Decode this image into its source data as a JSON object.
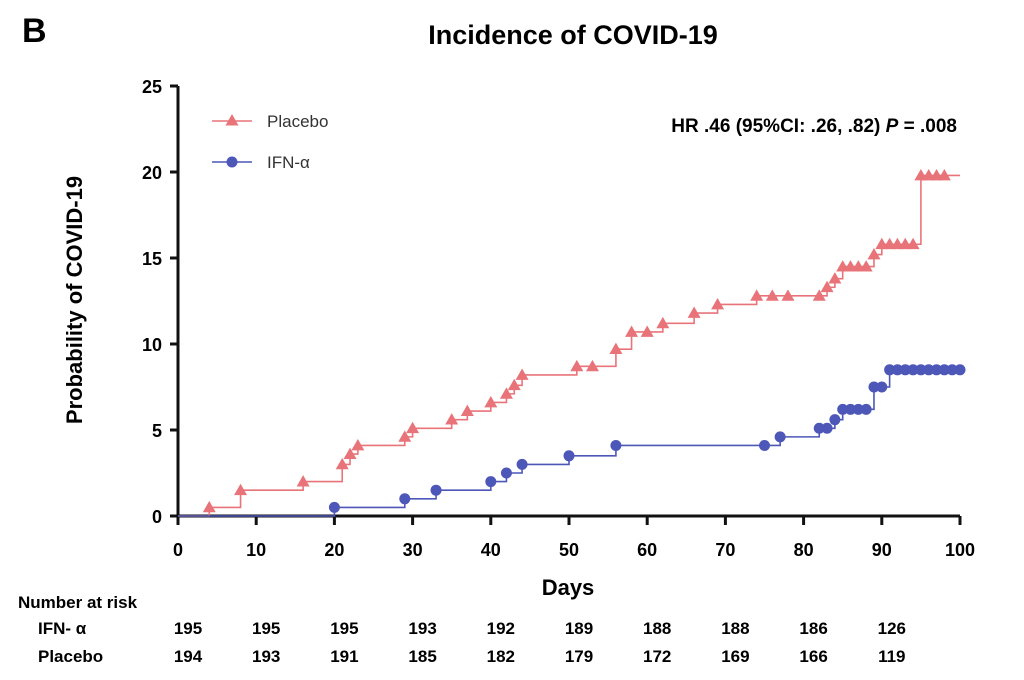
{
  "panel_label": "B",
  "colors": {
    "placebo": "#e8747a",
    "ifn": "#4d57b8",
    "axis": "#111111"
  },
  "legend": {
    "placebo_icon": "triangle-marker",
    "ifn_icon": "circle-marker"
  },
  "hr_annotation": {
    "prefix": "HR .46 (95%CI: .26, .82) ",
    "p_label": "P",
    "suffix": " = .008"
  },
  "risk_table": {
    "title": "Number at risk",
    "rows": [
      {
        "label": "IFN- α",
        "values": [
          "195",
          "195",
          "195",
          "193",
          "192",
          "189",
          "188",
          "188",
          "186",
          "126"
        ]
      },
      {
        "label": "Placebo",
        "values": [
          "194",
          "193",
          "191",
          "185",
          "182",
          "179",
          "172",
          "169",
          "166",
          "119"
        ]
      }
    ]
  },
  "chart_data": {
    "type": "line",
    "subtype": "kaplan-meier-step",
    "title": "Incidence of  COVID-19",
    "xlabel": "Days",
    "ylabel": "Probability of COVID-19",
    "xlim": [
      0,
      100
    ],
    "ylim": [
      0,
      25
    ],
    "xticks": [
      0,
      10,
      20,
      30,
      40,
      50,
      60,
      70,
      80,
      90,
      100
    ],
    "yticks": [
      0,
      5,
      10,
      15,
      20,
      25
    ],
    "grid": false,
    "legend_position": "top-left",
    "series": [
      {
        "name": "Placebo",
        "marker": "triangle",
        "points": [
          [
            4,
            0.5
          ],
          [
            8,
            1.5
          ],
          [
            16,
            2.0
          ],
          [
            21,
            3.0
          ],
          [
            22,
            3.6
          ],
          [
            23,
            4.1
          ],
          [
            29,
            4.6
          ],
          [
            30,
            5.1
          ],
          [
            35,
            5.6
          ],
          [
            37,
            6.1
          ],
          [
            40,
            6.6
          ],
          [
            42,
            7.1
          ],
          [
            43,
            7.6
          ],
          [
            44,
            8.2
          ],
          [
            51,
            8.7
          ],
          [
            53,
            8.7
          ],
          [
            56,
            9.7
          ],
          [
            58,
            10.7
          ],
          [
            60,
            10.7
          ],
          [
            62,
            11.2
          ],
          [
            66,
            11.8
          ],
          [
            69,
            12.3
          ],
          [
            74,
            12.8
          ],
          [
            76,
            12.8
          ],
          [
            78,
            12.8
          ],
          [
            82,
            12.8
          ],
          [
            83,
            13.3
          ],
          [
            84,
            13.8
          ],
          [
            85,
            14.5
          ],
          [
            86,
            14.5
          ],
          [
            87,
            14.5
          ],
          [
            88,
            14.5
          ],
          [
            89,
            15.2
          ],
          [
            90,
            15.8
          ],
          [
            91,
            15.8
          ],
          [
            92,
            15.8
          ],
          [
            93,
            15.8
          ],
          [
            94,
            15.8
          ],
          [
            95,
            19.8
          ],
          [
            96,
            19.8
          ],
          [
            97,
            19.8
          ],
          [
            98,
            19.8
          ]
        ],
        "line_end_x": 100
      },
      {
        "name": "IFN-α",
        "marker": "circle",
        "points": [
          [
            20,
            0.5
          ],
          [
            29,
            1.0
          ],
          [
            33,
            1.5
          ],
          [
            40,
            2.0
          ],
          [
            42,
            2.5
          ],
          [
            44,
            3.0
          ],
          [
            50,
            3.5
          ],
          [
            56,
            4.1
          ],
          [
            75,
            4.1
          ],
          [
            77,
            4.6
          ],
          [
            82,
            5.1
          ],
          [
            83,
            5.1
          ],
          [
            84,
            5.6
          ],
          [
            85,
            6.2
          ],
          [
            86,
            6.2
          ],
          [
            87,
            6.2
          ],
          [
            88,
            6.2
          ],
          [
            89,
            7.5
          ],
          [
            90,
            7.5
          ],
          [
            91,
            8.5
          ],
          [
            92,
            8.5
          ],
          [
            93,
            8.5
          ],
          [
            94,
            8.5
          ],
          [
            95,
            8.5
          ],
          [
            96,
            8.5
          ],
          [
            97,
            8.5
          ],
          [
            98,
            8.5
          ],
          [
            99,
            8.5
          ],
          [
            100,
            8.5
          ]
        ],
        "line_end_x": 100
      }
    ]
  }
}
